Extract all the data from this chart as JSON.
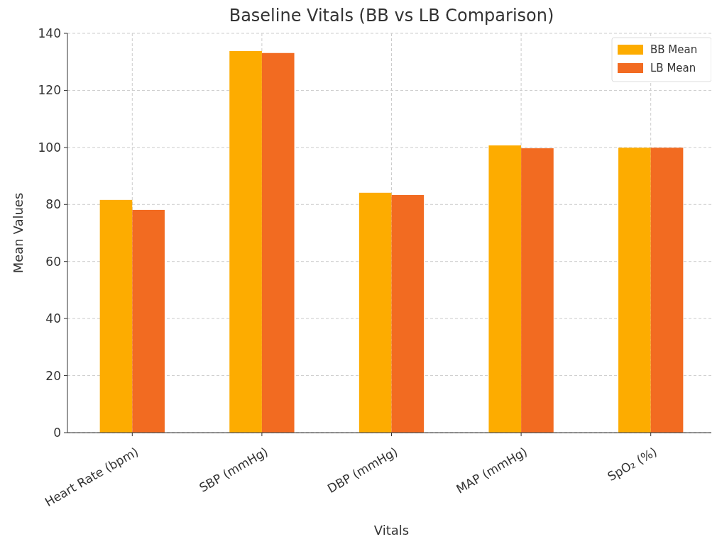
{
  "chart_data": {
    "type": "bar",
    "title": "Baseline Vitals (BB vs LB Comparison)",
    "xlabel": "Vitals",
    "ylabel": "Mean Values",
    "categories": [
      "Heart Rate (bpm)",
      "SBP (mmHg)",
      "DBP (mmHg)",
      "MAP (mmHg)",
      "SpO₂ (%)"
    ],
    "series": [
      {
        "name": "BB Mean",
        "color": "#fdac00",
        "values": [
          81.6,
          133.8,
          84.1,
          100.7,
          99.9
        ]
      },
      {
        "name": "LB Mean",
        "color": "#f26b21",
        "values": [
          78.1,
          133.1,
          83.3,
          99.7,
          99.9
        ]
      }
    ],
    "ylim": [
      0,
      140
    ],
    "yticks": [
      0,
      20,
      40,
      60,
      80,
      100,
      120,
      140
    ],
    "grid": true,
    "legend": "top right"
  }
}
